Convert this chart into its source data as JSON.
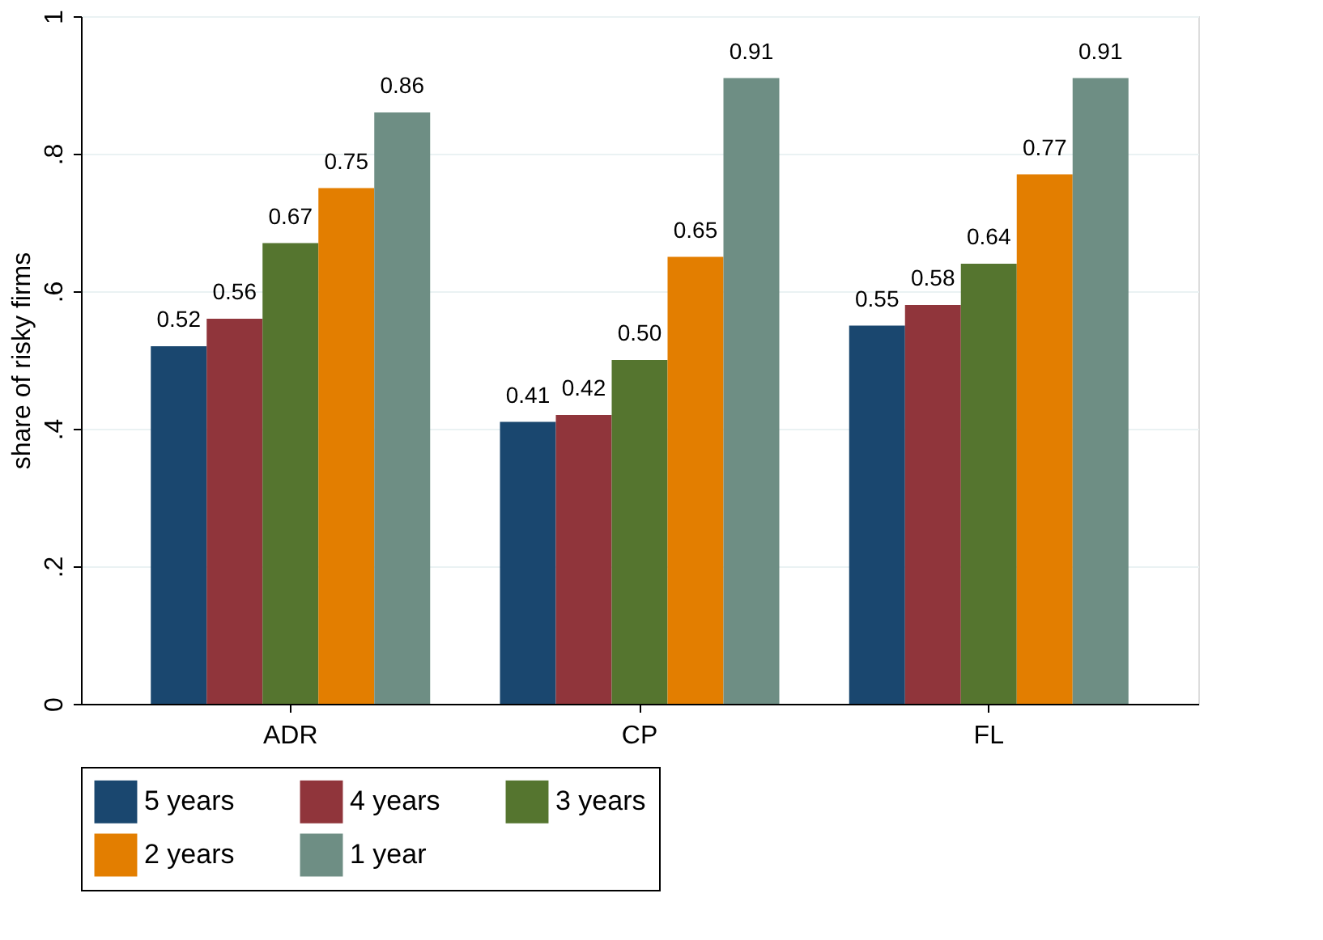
{
  "chart_data": {
    "type": "bar",
    "ylabel": "share of risky firms",
    "categories": [
      "ADR",
      "CP",
      "FL"
    ],
    "series": [
      {
        "name": "5 years",
        "color": "#1a476f",
        "values": [
          0.52,
          0.41,
          0.55
        ],
        "value_labels": [
          "0.52",
          "0.41",
          "0.55"
        ]
      },
      {
        "name": "4 years",
        "color": "#90353b",
        "values": [
          0.56,
          0.42,
          0.58
        ],
        "value_labels": [
          "0.56",
          "0.42",
          "0.58"
        ]
      },
      {
        "name": "3 years",
        "color": "#55752f",
        "values": [
          0.67,
          0.5,
          0.64
        ],
        "value_labels": [
          "0.67",
          "0.50",
          "0.64"
        ]
      },
      {
        "name": "2 years",
        "color": "#e37e00",
        "values": [
          0.75,
          0.65,
          0.77
        ],
        "value_labels": [
          "0.75",
          "0.65",
          "0.77"
        ]
      },
      {
        "name": "1 year",
        "color": "#6e8e84",
        "values": [
          0.86,
          0.91,
          0.91
        ],
        "value_labels": [
          "0.86",
          "0.91",
          "0.91"
        ]
      }
    ],
    "ylim": [
      0,
      1
    ],
    "yticks": [
      0,
      {
        "value": 0.2,
        "label": ".2"
      },
      {
        "value": 0.4,
        "label": ".4"
      },
      {
        "value": 0.6,
        "label": ".6"
      },
      {
        "value": 0.8,
        "label": ".8"
      },
      1
    ],
    "grid": "y",
    "legend": "bottom"
  }
}
